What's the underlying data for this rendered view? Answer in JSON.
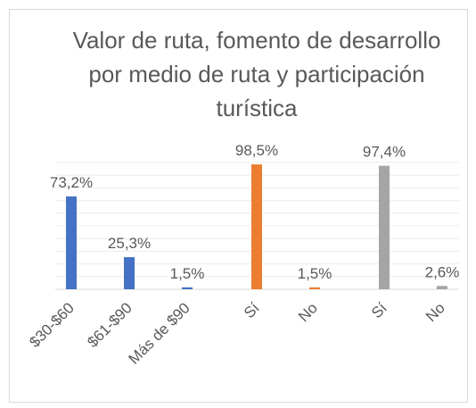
{
  "chart_data": {
    "type": "bar",
    "title": "Valor de ruta, fomento de desarrollo por medio de ruta y participación turística",
    "series": [
      {
        "color": "#4472c4",
        "categories": [
          "$30-$60",
          "$61-$90",
          "Más de $90"
        ],
        "values": [
          73.2,
          25.3,
          1.5
        ],
        "value_labels": [
          "73,2%",
          "25,3%",
          "1,5%"
        ]
      },
      {
        "color": "#ed7d31",
        "categories": [
          "Sí",
          "No"
        ],
        "values": [
          98.5,
          1.5
        ],
        "value_labels": [
          "98,5%",
          "1,5%"
        ]
      },
      {
        "color": "#a5a5a5",
        "categories": [
          "Sí",
          "No"
        ],
        "values": [
          97.4,
          2.6
        ],
        "value_labels": [
          "97,4%",
          "2,6%"
        ]
      }
    ],
    "ylim": [
      0,
      100
    ],
    "yticks": [
      0,
      10,
      20,
      30,
      40,
      50,
      60,
      70,
      80,
      90,
      100
    ],
    "grid": true
  }
}
